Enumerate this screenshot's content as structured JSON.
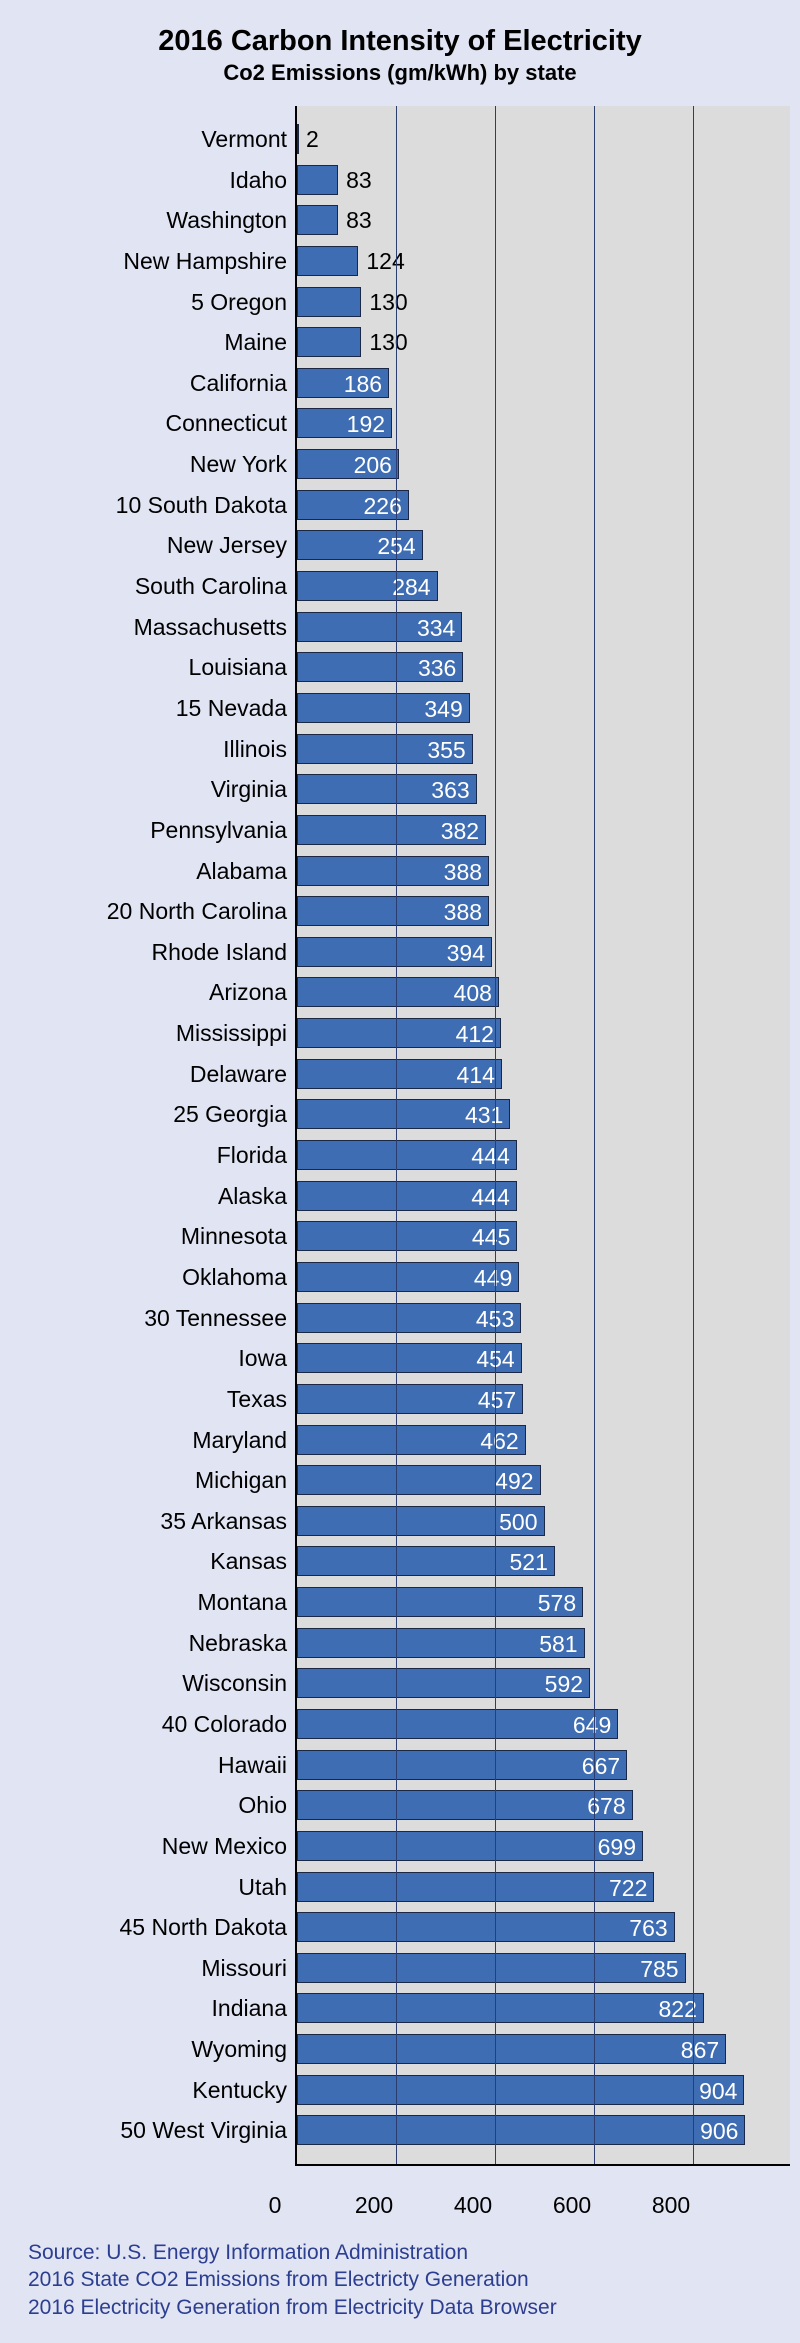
{
  "chart": {
    "type": "bar-horizontal",
    "title": "2016 Carbon Intensity of Electricity",
    "subtitle": "Co2 Emissions (gm/kWh) by state",
    "background_color": "#e1e4f2",
    "plot_bg_color": "#dcdcdc",
    "bar_color": "#3e6db3",
    "bar_border_color": "#1a2845",
    "grid_color": "#2c3e70",
    "axis_color": "#000000",
    "source_color": "#2c3e90",
    "title_fontsize": 29,
    "subtitle_fontsize": 22,
    "label_fontsize": 23,
    "value_fontsize": 23,
    "tick_fontsize": 23,
    "source_fontsize": 21,
    "xlim": [
      0,
      1000
    ],
    "xticks": [
      0,
      200,
      400,
      600,
      800
    ],
    "inside_threshold": 140,
    "rank_marks": [
      5,
      10,
      15,
      20,
      25,
      30,
      35,
      40,
      45,
      50
    ],
    "states": [
      {
        "name": "Vermont",
        "value": 2
      },
      {
        "name": "Idaho",
        "value": 83
      },
      {
        "name": "Washington",
        "value": 83
      },
      {
        "name": "New Hampshire",
        "value": 124
      },
      {
        "name": "Oregon",
        "value": 130
      },
      {
        "name": "Maine",
        "value": 130
      },
      {
        "name": "California",
        "value": 186
      },
      {
        "name": "Connecticut",
        "value": 192
      },
      {
        "name": "New York",
        "value": 206
      },
      {
        "name": "South Dakota",
        "value": 226
      },
      {
        "name": "New Jersey",
        "value": 254
      },
      {
        "name": "South Carolina",
        "value": 284
      },
      {
        "name": "Massachusetts",
        "value": 334
      },
      {
        "name": "Louisiana",
        "value": 336
      },
      {
        "name": "Nevada",
        "value": 349
      },
      {
        "name": "Illinois",
        "value": 355
      },
      {
        "name": "Virginia",
        "value": 363
      },
      {
        "name": "Pennsylvania",
        "value": 382
      },
      {
        "name": "Alabama",
        "value": 388
      },
      {
        "name": "North Carolina",
        "value": 388
      },
      {
        "name": "Rhode Island",
        "value": 394
      },
      {
        "name": "Arizona",
        "value": 408
      },
      {
        "name": "Mississippi",
        "value": 412
      },
      {
        "name": "Delaware",
        "value": 414
      },
      {
        "name": "Georgia",
        "value": 431
      },
      {
        "name": "Florida",
        "value": 444
      },
      {
        "name": "Alaska",
        "value": 444
      },
      {
        "name": "Minnesota",
        "value": 445
      },
      {
        "name": "Oklahoma",
        "value": 449
      },
      {
        "name": "Tennessee",
        "value": 453
      },
      {
        "name": "Iowa",
        "value": 454
      },
      {
        "name": "Texas",
        "value": 457
      },
      {
        "name": "Maryland",
        "value": 462
      },
      {
        "name": "Michigan",
        "value": 492
      },
      {
        "name": "Arkansas",
        "value": 500
      },
      {
        "name": "Kansas",
        "value": 521
      },
      {
        "name": "Montana",
        "value": 578
      },
      {
        "name": "Nebraska",
        "value": 581
      },
      {
        "name": "Wisconsin",
        "value": 592
      },
      {
        "name": "Colorado",
        "value": 649
      },
      {
        "name": "Hawaii",
        "value": 667
      },
      {
        "name": "Ohio",
        "value": 678
      },
      {
        "name": "New Mexico",
        "value": 699
      },
      {
        "name": "Utah",
        "value": 722
      },
      {
        "name": "North Dakota",
        "value": 763
      },
      {
        "name": "Missouri",
        "value": 785
      },
      {
        "name": "Indiana",
        "value": 822
      },
      {
        "name": "Wyoming",
        "value": 867
      },
      {
        "name": "Kentucky",
        "value": 904
      },
      {
        "name": "West Virginia",
        "value": 906
      }
    ],
    "source_lines": [
      "Source: U.S. Energy Information Administration",
      "2016 State CO2 Emissions from Electricty Generation",
      "2016 Electricity Generation from Electricity Data Browser"
    ]
  }
}
